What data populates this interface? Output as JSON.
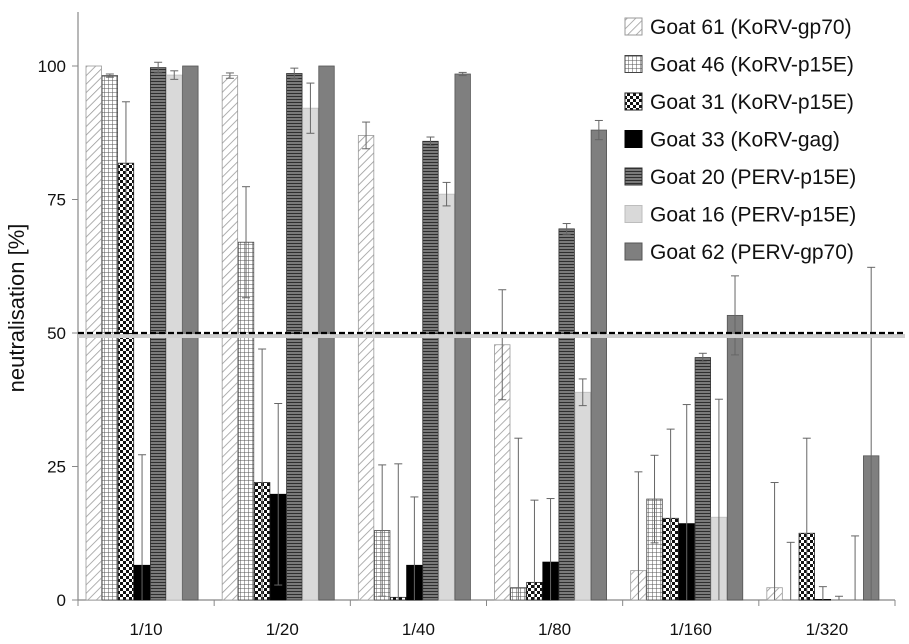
{
  "chart_data": {
    "type": "bar",
    "ylabel": "neutralisation [%]",
    "xlabel": "",
    "ylim": [
      0,
      100
    ],
    "yticks": [
      0,
      25,
      50,
      75,
      100
    ],
    "threshold": 50,
    "grid": false,
    "legend_position": "top-right",
    "categories": [
      "1/10",
      "1/20",
      "1/40",
      "1/80",
      "1/160",
      "1/320"
    ],
    "series": [
      {
        "name": "Goat 61 (KoRV-gp70)",
        "pattern": "diagonal",
        "values": [
          100,
          98.2,
          87,
          47.8,
          5.5,
          2.3
        ],
        "errors": [
          0,
          0.5,
          2.5,
          10.3,
          18.5,
          19.7
        ]
      },
      {
        "name": "Goat 46 (KoRV-p15E)",
        "pattern": "grid",
        "values": [
          98.2,
          67,
          13,
          2.3,
          18.9,
          0
        ],
        "errors": [
          0.3,
          10.4,
          12.3,
          28,
          8.2,
          10.8
        ]
      },
      {
        "name": "Goat 31 (KoRV-p15E)",
        "pattern": "checker",
        "values": [
          81.8,
          22,
          0.5,
          3.3,
          15.3,
          12.5
        ],
        "errors": [
          11.5,
          25,
          25,
          15.4,
          16.7,
          17.8
        ]
      },
      {
        "name": "Goat 33 (KoRV-gag)",
        "pattern": "solid-black",
        "values": [
          6.5,
          19.8,
          6.5,
          7.1,
          14.3,
          0.1
        ],
        "errors": [
          20.7,
          17,
          12.8,
          11.9,
          22.3,
          2.4
        ]
      },
      {
        "name": "Goat 20 (PERV-p15E)",
        "pattern": "horizontal",
        "values": [
          99.7,
          98.6,
          85.9,
          69.5,
          45.4,
          0
        ],
        "errors": [
          1,
          1,
          0.8,
          1,
          0.8,
          0.7
        ]
      },
      {
        "name": "Goat 16 (PERV-p15E)",
        "pattern": "light-gray",
        "values": [
          98.3,
          92.1,
          76,
          38.9,
          15.5,
          0
        ],
        "errors": [
          0.8,
          4.7,
          2.2,
          2.5,
          22.1,
          12
        ]
      },
      {
        "name": "Goat 62 (PERV-gp70)",
        "pattern": "dark-gray",
        "values": [
          100,
          100,
          98.5,
          88,
          53.3,
          27
        ],
        "errors": [
          0,
          0,
          0.3,
          1.8,
          7.4,
          35.3
        ]
      }
    ]
  }
}
